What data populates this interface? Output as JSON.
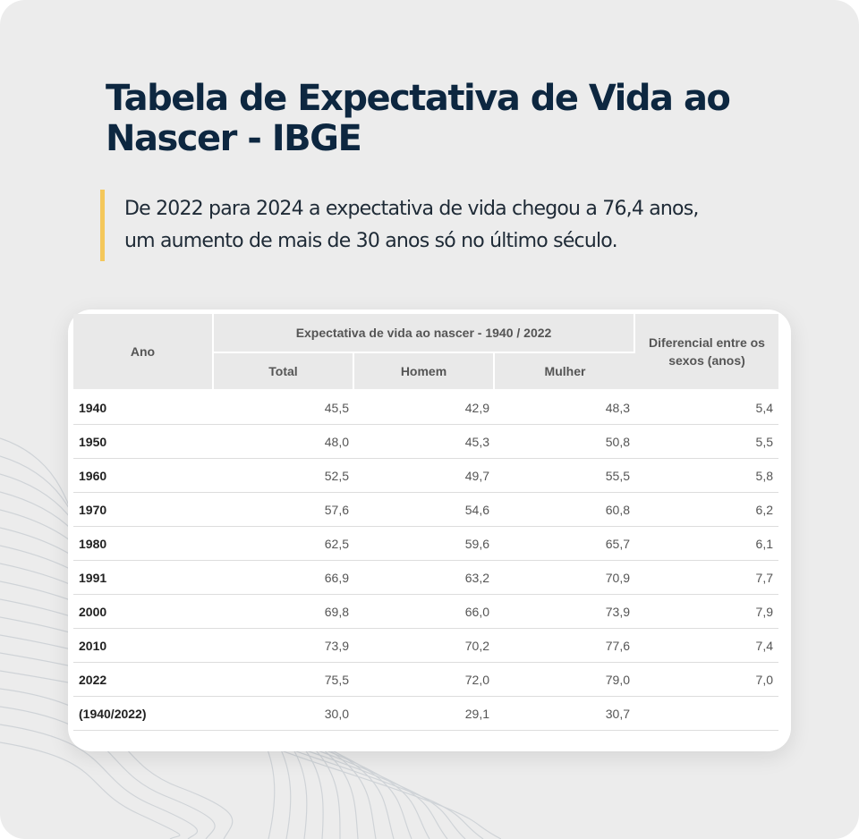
{
  "title": "Tabela de Expectativa de Vida ao Nascer - IBGE",
  "subtitle_line1": "De 2022 para 2024 a expectativa de vida chegou a 76,4 anos,",
  "subtitle_line2": "um aumento de mais de 30 anos só no último século.",
  "colors": {
    "background": "#ececec",
    "title": "#0d2740",
    "accent": "#f4c75a",
    "header_bg": "#e9e9e9"
  },
  "table": {
    "header_ano": "Ano",
    "header_group": "Expectativa de vida ao nascer - 1940 / 2022",
    "header_total": "Total",
    "header_homem": "Homem",
    "header_mulher": "Mulher",
    "header_diferencial": "Diferencial entre os sexos (anos)",
    "rows": [
      {
        "ano": "1940",
        "total": "45,5",
        "homem": "42,9",
        "mulher": "48,3",
        "diferencial": "5,4"
      },
      {
        "ano": "1950",
        "total": "48,0",
        "homem": "45,3",
        "mulher": "50,8",
        "diferencial": "5,5"
      },
      {
        "ano": "1960",
        "total": "52,5",
        "homem": "49,7",
        "mulher": "55,5",
        "diferencial": "5,8"
      },
      {
        "ano": "1970",
        "total": "57,6",
        "homem": "54,6",
        "mulher": "60,8",
        "diferencial": "6,2"
      },
      {
        "ano": "1980",
        "total": "62,5",
        "homem": "59,6",
        "mulher": "65,7",
        "diferencial": "6,1"
      },
      {
        "ano": "1991",
        "total": "66,9",
        "homem": "63,2",
        "mulher": "70,9",
        "diferencial": "7,7"
      },
      {
        "ano": "2000",
        "total": "69,8",
        "homem": "66,0",
        "mulher": "73,9",
        "diferencial": "7,9"
      },
      {
        "ano": "2010",
        "total": "73,9",
        "homem": "70,2",
        "mulher": "77,6",
        "diferencial": "7,4"
      },
      {
        "ano": "2022",
        "total": "75,5",
        "homem": "72,0",
        "mulher": "79,0",
        "diferencial": "7,0"
      },
      {
        "ano": "(1940/2022)",
        "total": "30,0",
        "homem": "29,1",
        "mulher": "30,7",
        "diferencial": ""
      }
    ]
  }
}
